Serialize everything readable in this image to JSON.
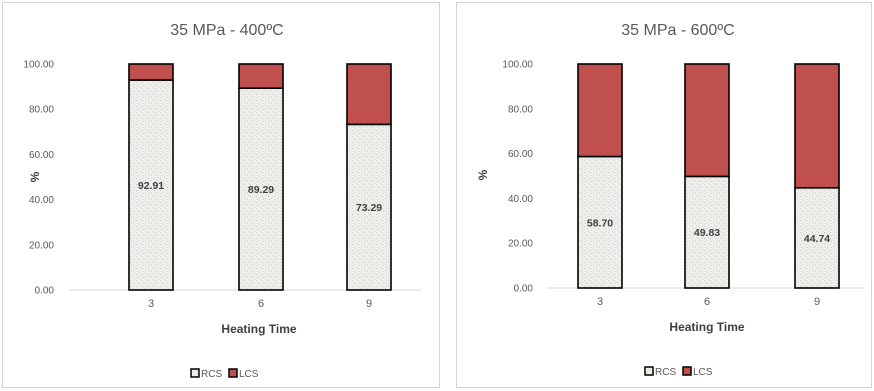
{
  "chart_data": [
    {
      "type": "bar",
      "stacked": true,
      "title": "35 MPa - 400ºC",
      "xlabel": "Heating Time",
      "ylabel": "%",
      "categories": [
        "3",
        "6",
        "9"
      ],
      "ylim": [
        0,
        100
      ],
      "yticks": [
        "0.00",
        "20.00",
        "40.00",
        "60.00",
        "80.00",
        "100.00"
      ],
      "grid": false,
      "legend_position": "bottom",
      "series": [
        {
          "name": "RCS",
          "values": [
            92.91,
            89.29,
            73.29
          ],
          "labels": [
            "92.91",
            "89.29",
            "73.29"
          ],
          "color": "#eeeeea"
        },
        {
          "name": "LCS",
          "values": [
            7.09,
            10.71,
            26.71
          ],
          "color": "#c0504d"
        }
      ]
    },
    {
      "type": "bar",
      "stacked": true,
      "title": "35 MPa - 600ºC",
      "xlabel": "Heating Time",
      "ylabel": "%",
      "categories": [
        "3",
        "6",
        "9"
      ],
      "ylim": [
        0,
        100
      ],
      "yticks": [
        "0.00",
        "20.00",
        "40.00",
        "60.00",
        "80.00",
        "100.00"
      ],
      "grid": false,
      "legend_position": "bottom",
      "series": [
        {
          "name": "RCS",
          "values": [
            58.7,
            49.83,
            44.74
          ],
          "labels": [
            "58.70",
            "49.83",
            "44.74"
          ],
          "color": "#eeeeea"
        },
        {
          "name": "LCS",
          "values": [
            41.3,
            50.17,
            55.26
          ],
          "color": "#c0504d"
        }
      ]
    }
  ]
}
